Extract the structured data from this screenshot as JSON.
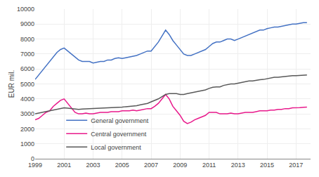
{
  "chart_data": {
    "type": "line",
    "ylabel": "EUR mil.",
    "x": [
      1999,
      1999.25,
      1999.5,
      1999.75,
      2000,
      2000.25,
      2000.5,
      2000.75,
      2001,
      2001.25,
      2001.5,
      2001.75,
      2002,
      2002.25,
      2002.5,
      2002.75,
      2003,
      2003.25,
      2003.5,
      2003.75,
      2004,
      2004.25,
      2004.5,
      2004.75,
      2005,
      2005.25,
      2005.5,
      2005.75,
      2006,
      2006.25,
      2006.5,
      2006.75,
      2007,
      2007.25,
      2007.5,
      2007.75,
      2008,
      2008.25,
      2008.5,
      2008.75,
      2009,
      2009.25,
      2009.5,
      2009.75,
      2010,
      2010.25,
      2010.5,
      2010.75,
      2011,
      2011.25,
      2011.5,
      2011.75,
      2012,
      2012.25,
      2012.5,
      2012.75,
      2013,
      2013.25,
      2013.5,
      2013.75,
      2014,
      2014.25,
      2014.5,
      2014.75,
      2015,
      2015.25,
      2015.5,
      2015.75,
      2016,
      2016.25,
      2016.5,
      2016.75,
      2017,
      2017.25,
      2017.5,
      2017.75
    ],
    "series": [
      {
        "name": "General government",
        "color": "#4472c4",
        "values": [
          5300,
          5600,
          5900,
          6200,
          6500,
          6800,
          7100,
          7300,
          7400,
          7200,
          7000,
          6800,
          6600,
          6500,
          6500,
          6500,
          6400,
          6450,
          6500,
          6500,
          6600,
          6600,
          6700,
          6750,
          6700,
          6750,
          6800,
          6850,
          6900,
          7000,
          7100,
          7200,
          7200,
          7500,
          7800,
          8200,
          8600,
          8300,
          7900,
          7600,
          7300,
          7000,
          6900,
          6900,
          7000,
          7100,
          7200,
          7300,
          7500,
          7700,
          7800,
          7800,
          7900,
          8000,
          8000,
          7900,
          8000,
          8100,
          8200,
          8300,
          8400,
          8500,
          8600,
          8600,
          8700,
          8750,
          8800,
          8800,
          8850,
          8900,
          8950,
          9000,
          9000,
          9050,
          9100,
          9100
        ]
      },
      {
        "name": "Central government",
        "color": "#e8198b",
        "values": [
          2600,
          2700,
          2900,
          3100,
          3200,
          3500,
          3700,
          3900,
          4000,
          3700,
          3400,
          3100,
          3000,
          3000,
          3050,
          3000,
          3000,
          3050,
          3100,
          3100,
          3100,
          3150,
          3150,
          3150,
          3200,
          3200,
          3200,
          3250,
          3200,
          3250,
          3300,
          3350,
          3350,
          3500,
          3700,
          4000,
          4300,
          4000,
          3500,
          3200,
          2900,
          2500,
          2350,
          2450,
          2600,
          2700,
          2800,
          2900,
          3100,
          3100,
          3100,
          3000,
          3000,
          3000,
          3050,
          3000,
          3000,
          3050,
          3100,
          3100,
          3100,
          3150,
          3200,
          3200,
          3200,
          3250,
          3250,
          3300,
          3300,
          3350,
          3350,
          3400,
          3400,
          3420,
          3440,
          3450
        ]
      },
      {
        "name": "Local government",
        "color": "#595959",
        "values": [
          3000,
          3050,
          3100,
          3150,
          3200,
          3250,
          3300,
          3350,
          3400,
          3380,
          3360,
          3350,
          3300,
          3320,
          3330,
          3340,
          3350,
          3360,
          3380,
          3380,
          3400,
          3420,
          3430,
          3440,
          3450,
          3480,
          3500,
          3530,
          3550,
          3600,
          3650,
          3700,
          3800,
          3900,
          4000,
          4150,
          4300,
          4350,
          4350,
          4350,
          4300,
          4300,
          4350,
          4400,
          4450,
          4500,
          4550,
          4600,
          4700,
          4780,
          4800,
          4800,
          4900,
          4950,
          5000,
          5000,
          5050,
          5100,
          5150,
          5200,
          5200,
          5250,
          5280,
          5300,
          5350,
          5400,
          5450,
          5450,
          5480,
          5500,
          5520,
          5550,
          5550,
          5570,
          5580,
          5600
        ]
      }
    ],
    "xlim": [
      1999,
      2018
    ],
    "xticks": [
      1999,
      2001,
      2003,
      2005,
      2007,
      2009,
      2011,
      2013,
      2015,
      2017
    ],
    "ylim": [
      0,
      10000
    ],
    "yticks": [
      0,
      1000,
      2000,
      3000,
      4000,
      5000,
      6000,
      7000,
      8000,
      9000,
      10000
    ],
    "grid": true,
    "legend": "lower left"
  }
}
